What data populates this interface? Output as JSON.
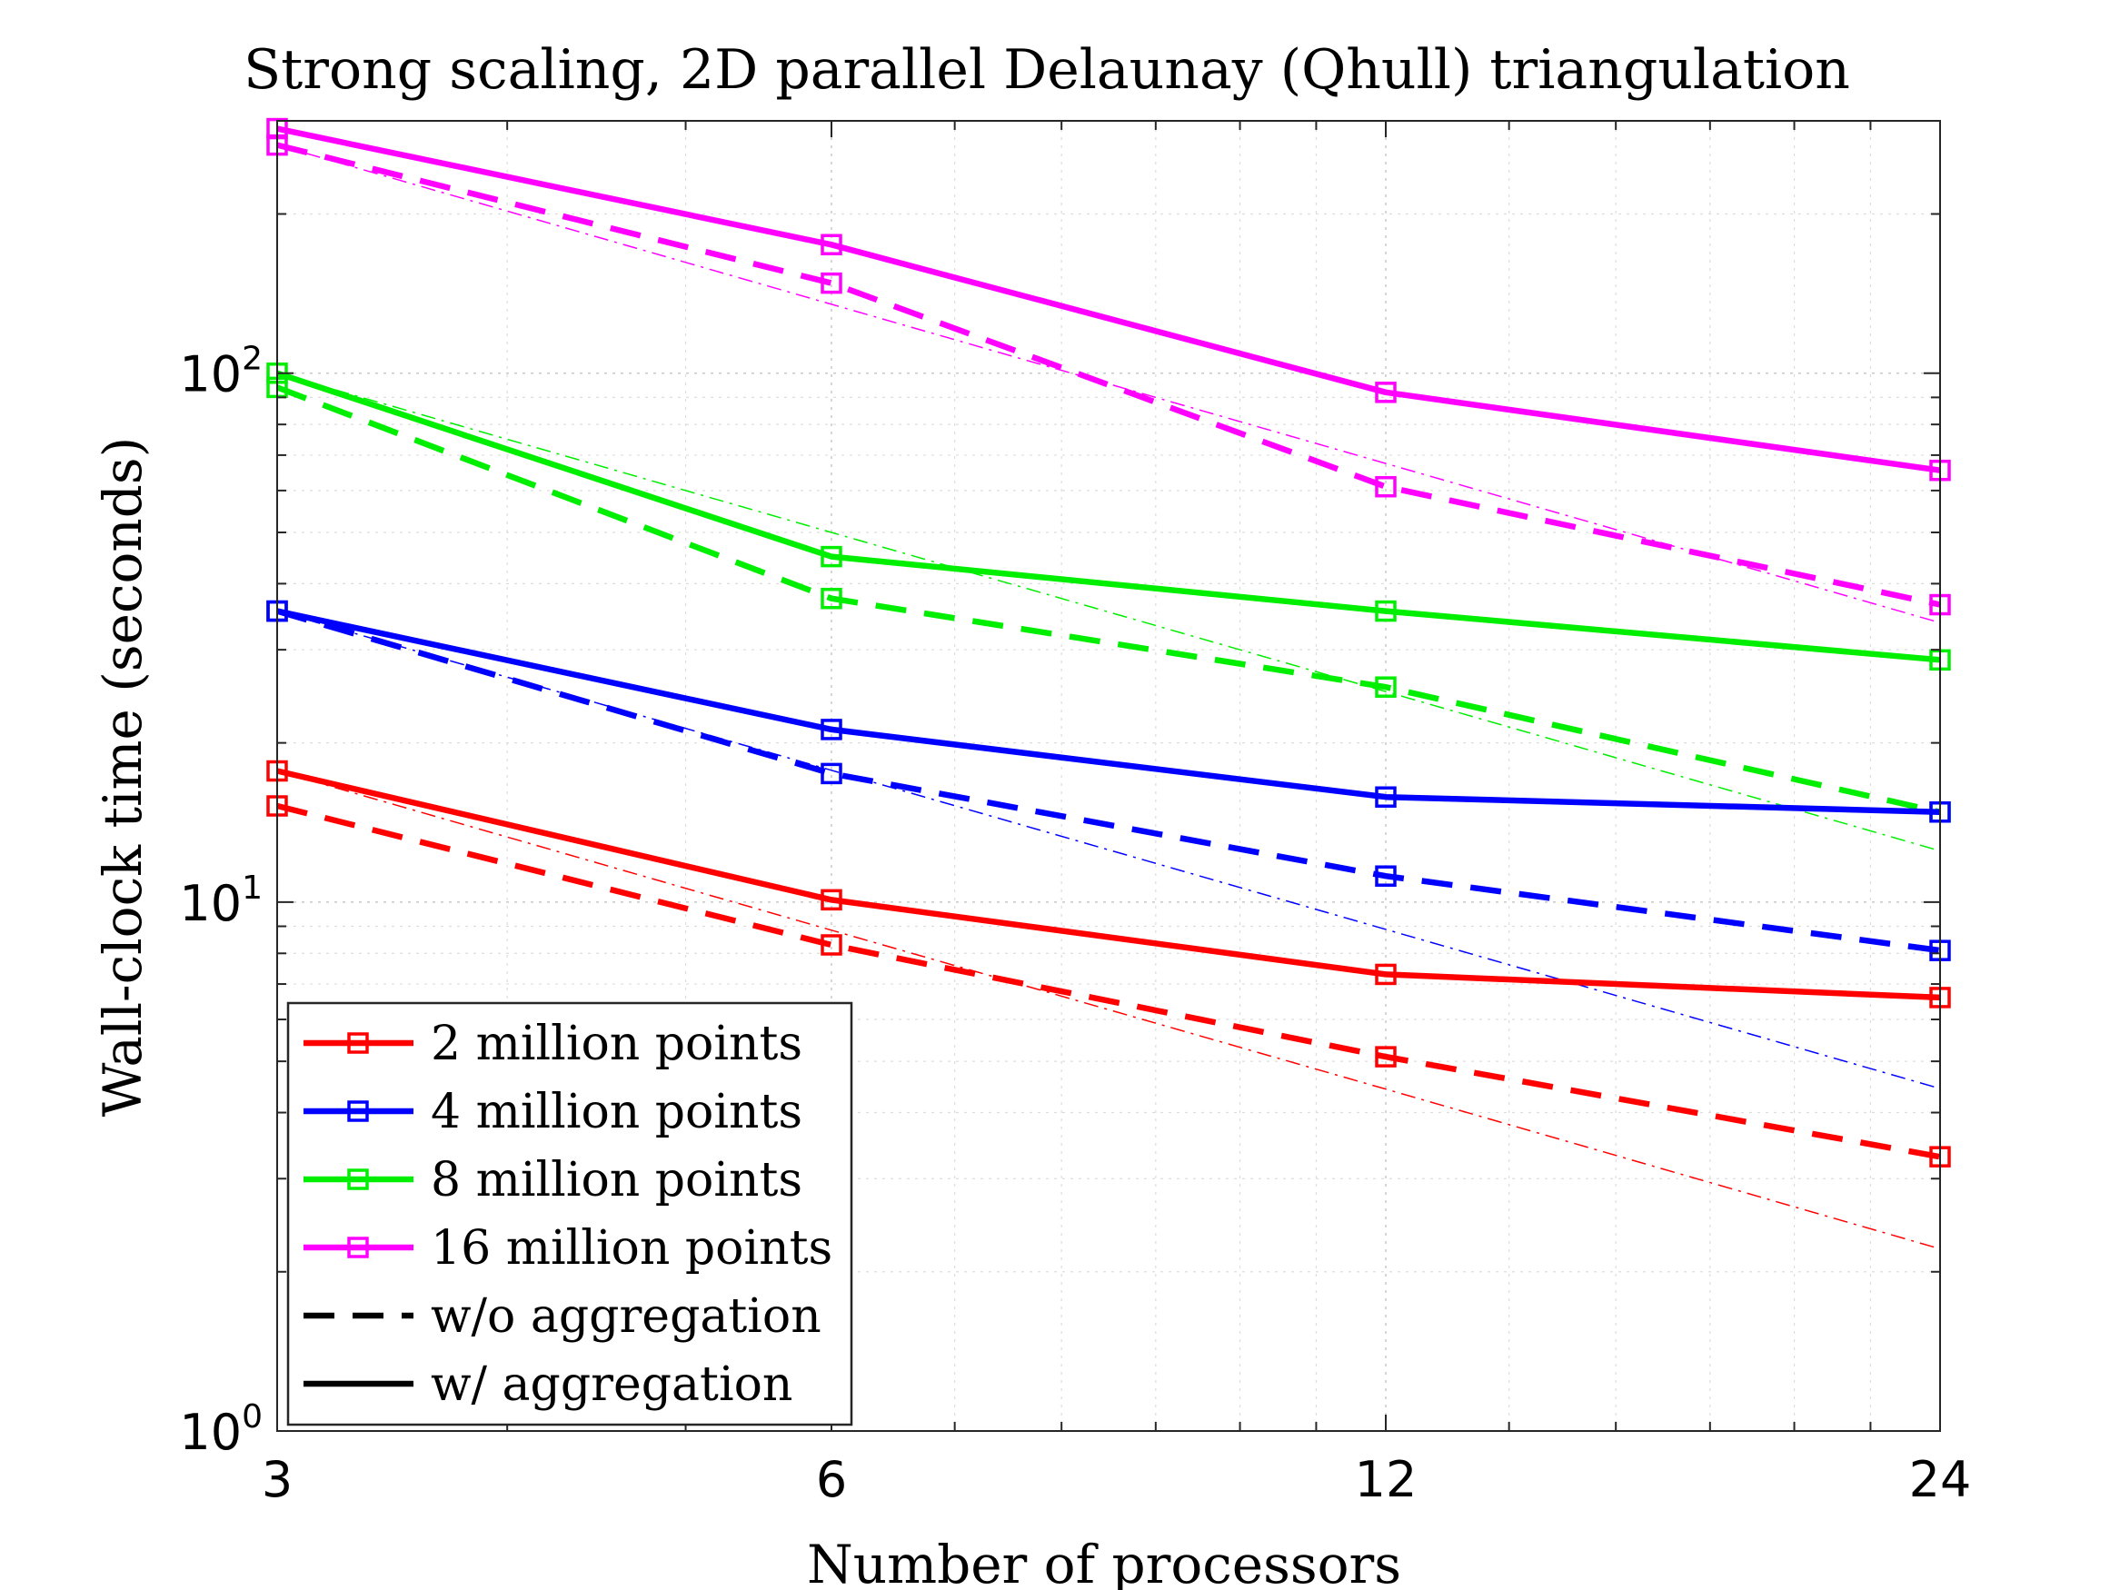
{
  "chart_data": {
    "type": "line",
    "title": "Strong scaling, 2D parallel Delaunay (Qhull) triangulation",
    "xlabel": "Number of processors",
    "ylabel": "Wall-clock time (seconds)",
    "x": [
      3,
      6,
      12,
      24
    ],
    "x_scale": "log2",
    "y_scale": "log10",
    "xlim": [
      3,
      24
    ],
    "ylim": [
      1,
      300
    ],
    "xticks": [
      "3",
      "6",
      "12",
      "24"
    ],
    "yticks": [
      {
        "base": "10",
        "exp": "0",
        "value": 1
      },
      {
        "base": "10",
        "exp": "1",
        "value": 10
      },
      {
        "base": "10",
        "exp": "2",
        "value": 100
      }
    ],
    "grid": true,
    "legend_position": "bottom-left",
    "series": [
      {
        "name": "2 million points",
        "color": "#ff0000",
        "style": "solid",
        "marker": "square",
        "values": [
          17.7,
          10.1,
          7.3,
          6.6
        ]
      },
      {
        "color": "#ff0000",
        "style": "dashed",
        "marker": "square",
        "values": [
          15.2,
          8.3,
          5.1,
          3.3
        ]
      },
      {
        "color": "#0000ff",
        "style": "solid",
        "marker": "square",
        "values": [
          35.5,
          21.2,
          15.8,
          14.8
        ]
      },
      {
        "color": "#0000ff",
        "style": "dashed",
        "marker": "square",
        "values": [
          35.5,
          17.5,
          11.2,
          8.1
        ]
      },
      {
        "color": "#00ee00",
        "style": "solid",
        "marker": "square",
        "values": [
          100,
          45,
          35.5,
          28.7
        ]
      },
      {
        "color": "#00ee00",
        "style": "dashed",
        "marker": "square",
        "values": [
          94,
          37.5,
          25.5,
          14.8
        ]
      },
      {
        "color": "#ff00ff",
        "style": "solid",
        "marker": "square",
        "values": [
          290,
          175,
          92,
          65.5
        ]
      },
      {
        "color": "#ff00ff",
        "style": "dashed",
        "marker": "square",
        "values": [
          270,
          148,
          61,
          36.5
        ]
      },
      {
        "color": "#ff0000",
        "style": "dashdot-thin",
        "marker": "none",
        "values": [
          17.7,
          8.85,
          4.43,
          2.21
        ]
      },
      {
        "color": "#0000ff",
        "style": "dashdot-thin",
        "marker": "none",
        "values": [
          35.5,
          17.75,
          8.88,
          4.44
        ]
      },
      {
        "color": "#00ee00",
        "style": "dashdot-thin",
        "marker": "none",
        "values": [
          100,
          50,
          25,
          12.5
        ]
      },
      {
        "color": "#ff00ff",
        "style": "dashdot-thin",
        "marker": "none",
        "values": [
          270,
          135,
          67.5,
          33.75
        ]
      }
    ],
    "legend": [
      {
        "label": "2 million points",
        "color": "#ff0000",
        "style": "solid",
        "marker": "square"
      },
      {
        "label": "4 million points",
        "color": "#0000ff",
        "style": "solid",
        "marker": "square"
      },
      {
        "label": "8 million points",
        "color": "#00ee00",
        "style": "solid",
        "marker": "square"
      },
      {
        "label": "16 million points",
        "color": "#ff00ff",
        "style": "solid",
        "marker": "square"
      },
      {
        "label": "w/o aggregation",
        "color": "#000000",
        "style": "dashed",
        "marker": "none"
      },
      {
        "label": "w/ aggregation",
        "color": "#000000",
        "style": "solid",
        "marker": "none"
      }
    ]
  }
}
